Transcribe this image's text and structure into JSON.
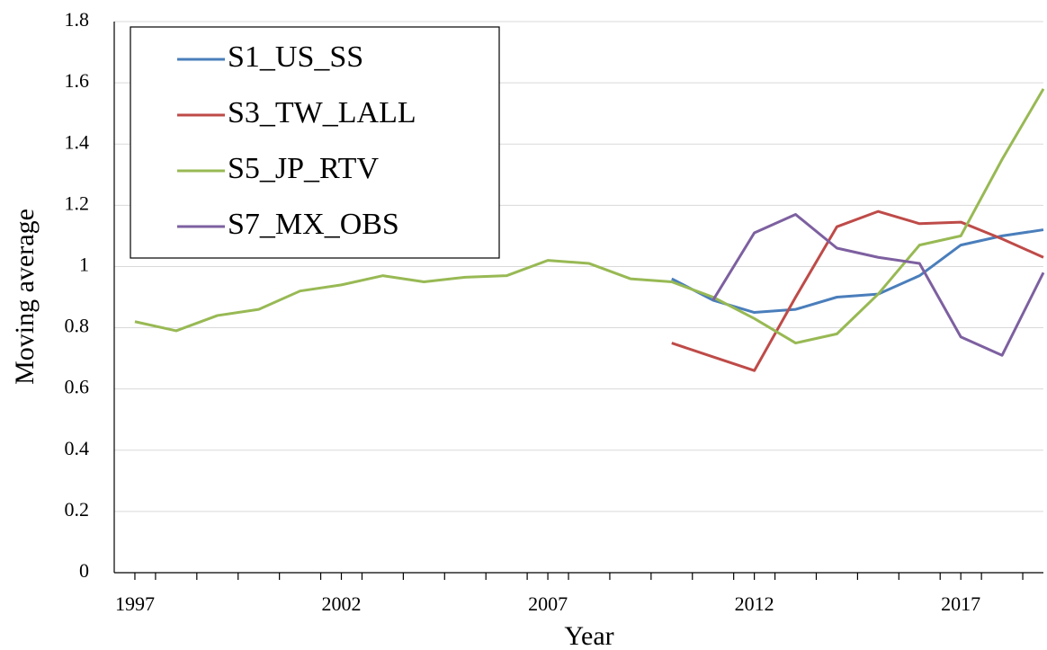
{
  "chart_data": {
    "type": "line",
    "x_label": "Year",
    "y_label": "Moving average",
    "x": [
      1997,
      1998,
      1999,
      2000,
      2001,
      2002,
      2003,
      2004,
      2005,
      2006,
      2007,
      2008,
      2009,
      2010,
      2011,
      2012,
      2013,
      2014,
      2015,
      2016,
      2017,
      2018,
      2019
    ],
    "xlim": [
      1996.5,
      2019
    ],
    "xticks": [
      1997,
      2002,
      2007,
      2012,
      2017
    ],
    "ylim": [
      0,
      1.8
    ],
    "yticks": [
      0,
      0.2,
      0.4,
      0.6,
      0.8,
      1,
      1.2,
      1.4,
      1.6,
      1.8
    ],
    "grid": true,
    "legend": "upper left",
    "series": [
      {
        "name": "S1_US_SS",
        "color": "#4a7ebb",
        "values": [
          null,
          null,
          null,
          null,
          null,
          null,
          null,
          null,
          null,
          null,
          null,
          null,
          null,
          0.96,
          0.89,
          0.85,
          0.86,
          0.9,
          0.91,
          0.97,
          1.07,
          1.1,
          1.12
        ]
      },
      {
        "name": "S3_TW_LALL",
        "color": "#be4b48",
        "values": [
          null,
          null,
          null,
          null,
          null,
          null,
          null,
          null,
          null,
          null,
          null,
          null,
          null,
          0.75,
          0.705,
          0.66,
          0.9,
          1.13,
          1.18,
          1.14,
          1.145,
          1.09,
          1.03
        ]
      },
      {
        "name": "S5_JP_RTV",
        "color": "#98b954",
        "values": [
          0.82,
          0.79,
          0.84,
          0.86,
          0.92,
          0.94,
          0.97,
          0.95,
          0.965,
          0.97,
          1.02,
          1.01,
          0.96,
          0.95,
          0.9,
          0.83,
          0.75,
          0.78,
          0.91,
          1.07,
          1.1,
          1.35,
          1.58
        ]
      },
      {
        "name": "S7_MX_OBS",
        "color": "#7d60a0",
        "values": [
          null,
          null,
          null,
          null,
          null,
          null,
          null,
          null,
          null,
          null,
          null,
          null,
          null,
          null,
          0.89,
          1.11,
          1.17,
          1.06,
          1.03,
          1.01,
          0.77,
          0.71,
          0.98
        ]
      }
    ]
  }
}
